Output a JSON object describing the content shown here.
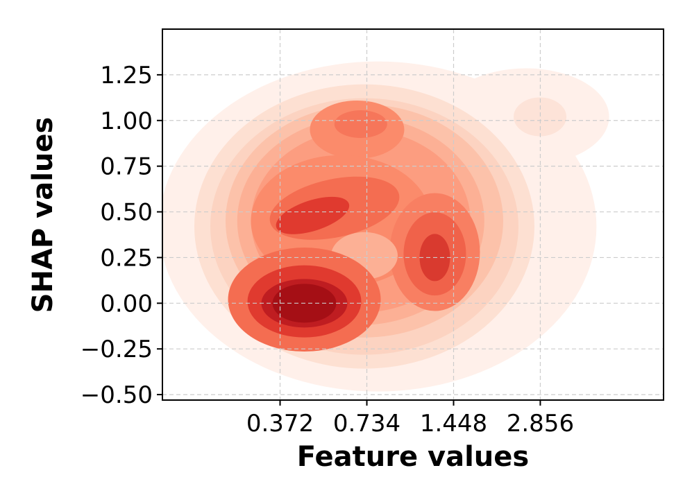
{
  "chart_data": {
    "type": "kde_density",
    "title": "",
    "xlabel": "Feature values",
    "ylabel": "SHAP values",
    "x_scale": "log",
    "x_ticks": [
      0.372,
      0.734,
      1.448,
      2.856
    ],
    "x_tick_labels": [
      "0.372",
      "0.734",
      "1.448",
      "2.856"
    ],
    "xlim": [
      0.148,
      7.5
    ],
    "y_ticks": [
      -0.5,
      -0.25,
      0.0,
      0.25,
      0.5,
      0.75,
      1.0,
      1.25
    ],
    "y_tick_labels": [
      "−0.50",
      "−0.25",
      "0.00",
      "0.25",
      "0.50",
      "0.75",
      "1.00",
      "1.25"
    ],
    "ylim": [
      -0.53,
      1.5
    ],
    "grid": true,
    "colormap": "Reds",
    "density_peaks": [
      {
        "x": 0.45,
        "y": 0.0,
        "level": "highest"
      },
      {
        "x": 1.25,
        "y": 0.25,
        "level": "high"
      },
      {
        "x": 0.48,
        "y": 0.48,
        "level": "high"
      },
      {
        "x": 0.7,
        "y": 0.55,
        "level": "medium"
      },
      {
        "x": 0.68,
        "y": 0.98,
        "level": "medium"
      },
      {
        "x": 2.85,
        "y": 1.02,
        "level": "low"
      }
    ],
    "colors": {
      "lightest": "#fee6dc",
      "darkest": "#a50f15",
      "grid": "#cccccc"
    }
  }
}
